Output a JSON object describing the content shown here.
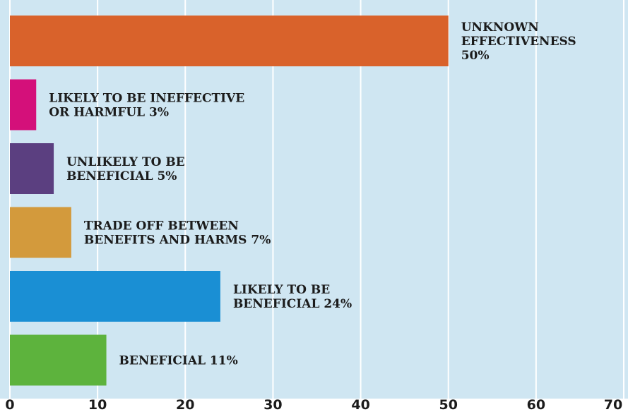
{
  "chart_data": {
    "type": "bar",
    "orientation": "horizontal",
    "title": "",
    "xlabel": "",
    "ylabel": "",
    "xlim": [
      0,
      70
    ],
    "x_ticks": [
      0,
      10,
      20,
      30,
      40,
      50,
      60,
      70
    ],
    "grid": true,
    "background_color": "#cfe6f2",
    "categories": [
      {
        "label_lines": [
          "UNKNOWN",
          "EFFECTIVENESS",
          "50%"
        ],
        "value": 50,
        "color": "#d9622b"
      },
      {
        "label_lines": [
          "LIKELY TO BE INEFFECTIVE",
          "OR HARMFUL 3%"
        ],
        "value": 3,
        "color": "#d4107a"
      },
      {
        "label_lines": [
          "UNLIKELY TO BE",
          "BENEFICIAL 5%"
        ],
        "value": 5,
        "color": "#5b3f80"
      },
      {
        "label_lines": [
          "TRADE OFF BETWEEN",
          "BENEFITS AND HARMS 7%"
        ],
        "value": 7,
        "color": "#d39a3c"
      },
      {
        "label_lines": [
          "LIKELY TO BE",
          "BENEFICIAL 24%"
        ],
        "value": 24,
        "color": "#1a8fd4"
      },
      {
        "label_lines": [
          "BENEFICIAL 11%"
        ],
        "value": 11,
        "color": "#5db33d"
      }
    ]
  }
}
